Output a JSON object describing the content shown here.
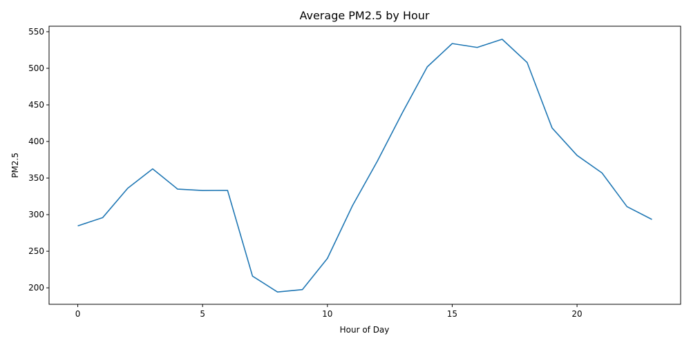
{
  "chart_data": {
    "type": "line",
    "title": "Average PM2.5 by Hour",
    "xlabel": "Hour of Day",
    "ylabel": "PM2.5",
    "x": [
      0,
      1,
      2,
      3,
      4,
      5,
      6,
      7,
      8,
      9,
      10,
      11,
      12,
      13,
      14,
      15,
      16,
      17,
      18,
      19,
      20,
      21,
      22,
      23
    ],
    "series": [
      {
        "color": "#1f77b4",
        "values": [
          284.6,
          296.0,
          336.0,
          362.6,
          334.9,
          333.0,
          333.2,
          216.0,
          194.3,
          197.6,
          240.2,
          312.0,
          373.0,
          439.0,
          502.0,
          533.8,
          528.5,
          539.7,
          508.0,
          418.5,
          381.0,
          357.0,
          311.0,
          293.5
        ]
      }
    ],
    "xlim": [
      -1.15,
      24.15
    ],
    "ylim": [
      177.5,
      557.5
    ],
    "xticks": [
      0,
      5,
      10,
      15,
      20
    ],
    "yticks": [
      200,
      250,
      300,
      350,
      400,
      450,
      500,
      550
    ],
    "grid": false,
    "legend": "none"
  }
}
